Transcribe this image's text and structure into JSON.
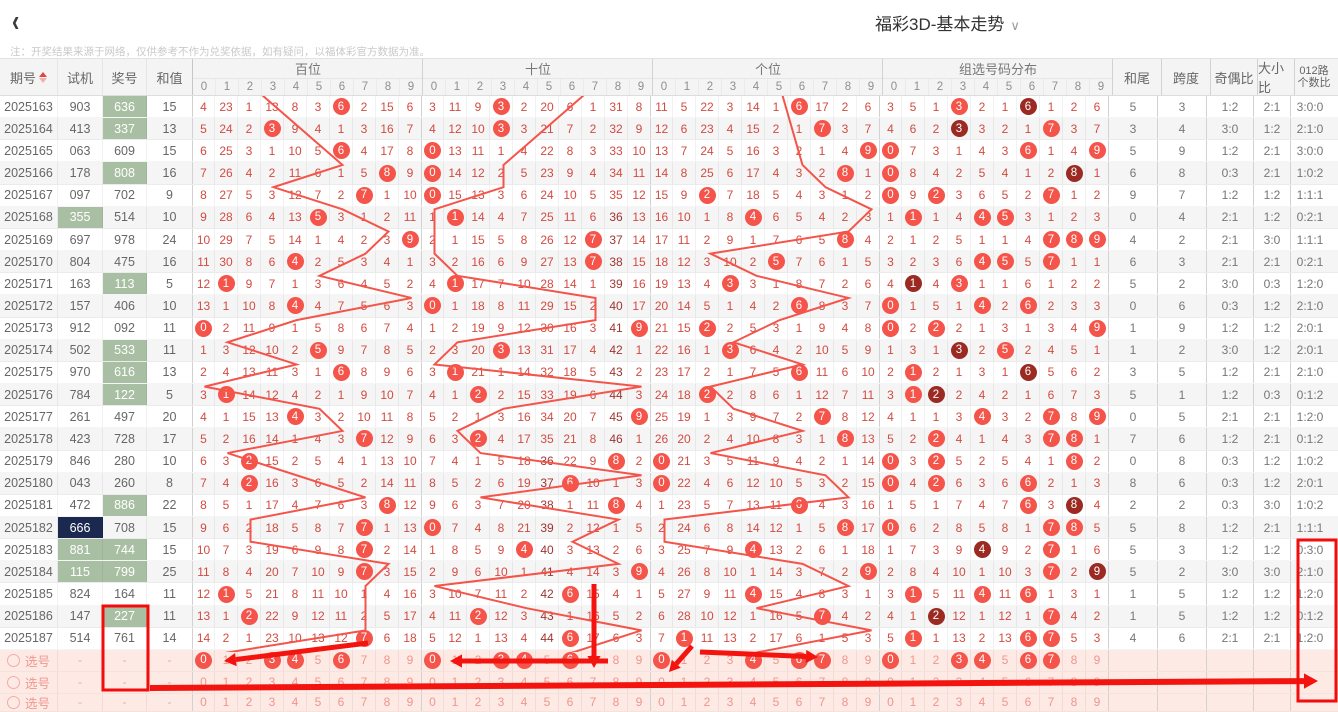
{
  "topbar": {
    "back_icon": "‹",
    "title": "福彩3D-基本走势",
    "chevron": "∨"
  },
  "note": "注：开奖结果来源于网络，仅供参考不作为兑奖依据，如有疑问，以福体彩官方数据为准。",
  "table_headers": {
    "left": [
      "期号",
      "试机",
      "奖号",
      "和值"
    ],
    "sections": [
      "百位",
      "十位",
      "个位",
      "组选号码分布"
    ],
    "digits": [
      "0",
      "1",
      "2",
      "3",
      "4",
      "5",
      "6",
      "7",
      "8",
      "9"
    ],
    "right": [
      "和尾",
      "跨度",
      "奇偶比",
      "大小比"
    ],
    "right_last": [
      "012路",
      "个数比"
    ]
  },
  "chart_data": {
    "type": "table",
    "description": "福彩3D基本走势图：每行为一期开奖，网格数字为各号码遗漏值(自动由开奖号推导)，圆圈为开出号码",
    "rows": [
      {
        "period": "2025163",
        "test": "903",
        "win": "636",
        "sum": "15"
      },
      {
        "period": "2025164",
        "test": "413",
        "win": "337",
        "sum": "13"
      },
      {
        "period": "2025165",
        "test": "063",
        "win": "609",
        "sum": "15"
      },
      {
        "period": "2025166",
        "test": "178",
        "win": "808",
        "sum": "16"
      },
      {
        "period": "2025167",
        "test": "097",
        "win": "702",
        "sum": "9"
      },
      {
        "period": "2025168",
        "test": "355",
        "win": "514",
        "sum": "10"
      },
      {
        "period": "2025169",
        "test": "697",
        "win": "978",
        "sum": "24"
      },
      {
        "period": "2025170",
        "test": "804",
        "win": "475",
        "sum": "16"
      },
      {
        "period": "2025171",
        "test": "163",
        "win": "113",
        "sum": "5"
      },
      {
        "period": "2025172",
        "test": "157",
        "win": "406",
        "sum": "10"
      },
      {
        "period": "2025173",
        "test": "912",
        "win": "092",
        "sum": "11"
      },
      {
        "period": "2025174",
        "test": "502",
        "win": "533",
        "sum": "11"
      },
      {
        "period": "2025175",
        "test": "970",
        "win": "616",
        "sum": "13"
      },
      {
        "period": "2025176",
        "test": "784",
        "win": "122",
        "sum": "5"
      },
      {
        "period": "2025177",
        "test": "261",
        "win": "497",
        "sum": "20"
      },
      {
        "period": "2025178",
        "test": "423",
        "win": "728",
        "sum": "17"
      },
      {
        "period": "2025179",
        "test": "846",
        "win": "280",
        "sum": "10"
      },
      {
        "period": "2025180",
        "test": "043",
        "win": "260",
        "sum": "8"
      },
      {
        "period": "2025181",
        "test": "472",
        "win": "886",
        "sum": "22"
      },
      {
        "period": "2025182",
        "test": "666",
        "win": "708",
        "sum": "15"
      },
      {
        "period": "2025183",
        "test": "881",
        "win": "744",
        "sum": "15"
      },
      {
        "period": "2025184",
        "test": "115",
        "win": "799",
        "sum": "25"
      },
      {
        "period": "2025185",
        "test": "824",
        "win": "164",
        "sum": "11"
      },
      {
        "period": "2025186",
        "test": "147",
        "win": "227",
        "sum": "11"
      },
      {
        "period": "2025187",
        "test": "514",
        "win": "761",
        "sum": "14"
      }
    ],
    "seed_miss": {
      "bai": [
        4,
        23,
        1,
        13,
        8,
        3,
        null,
        2,
        15,
        6
      ],
      "shi": [
        3,
        11,
        9,
        null,
        2,
        20,
        6,
        1,
        31,
        8
      ],
      "ge": [
        11,
        5,
        22,
        3,
        14,
        1,
        null,
        17,
        2,
        6
      ],
      "zu": [
        3,
        5,
        1,
        null,
        2,
        1,
        null,
        1,
        2,
        6
      ]
    },
    "prev_hits": {
      "bai": 2,
      "shi": 7,
      "ge": 5
    },
    "long_miss_threshold": 36,
    "selection_rows": [
      {
        "label": "选号",
        "dash": "-",
        "circles": {
          "bai": [
            0,
            3,
            4,
            6
          ],
          "shi": [
            0,
            3,
            4,
            6
          ],
          "ge": [
            0,
            4,
            6,
            7
          ],
          "zu": [
            0,
            3,
            4,
            6,
            7
          ]
        }
      },
      {
        "label": "选号",
        "dash": "-",
        "circles": {}
      },
      {
        "label": "选号",
        "dash": "-",
        "circles": {}
      }
    ]
  },
  "colors": {
    "miss": "#d24b41",
    "miss_long": "#9e352e",
    "circle": "#f4544a",
    "circle_dark": "#9b2a23",
    "line": "#f4544a",
    "arrow": "#f3140f",
    "box": "#f40b0b",
    "green": "#a9bfa3",
    "navy": "#1b2950"
  }
}
